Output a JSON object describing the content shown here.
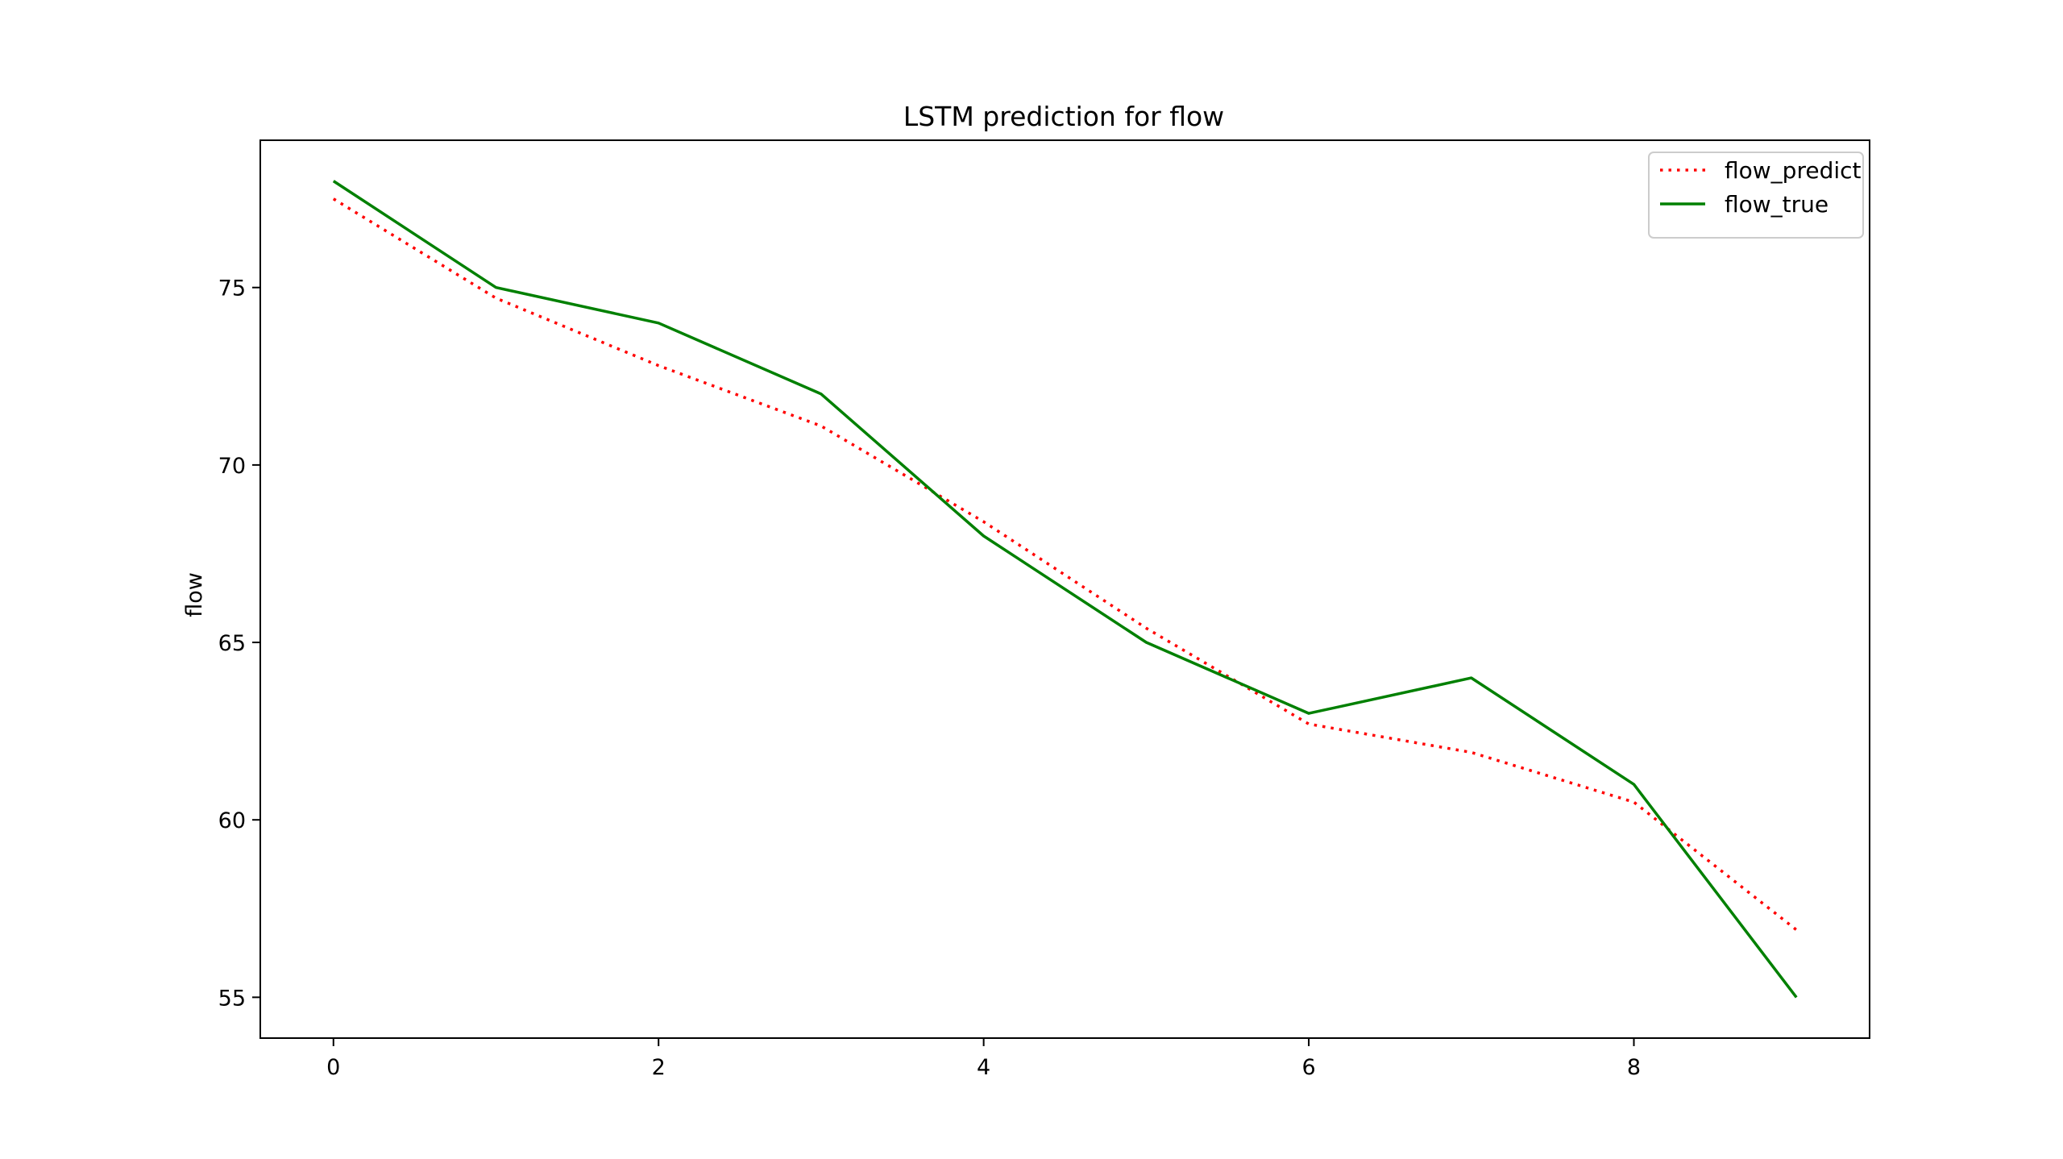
{
  "chart_data": {
    "type": "line",
    "title": "LSTM prediction for flow",
    "xlabel": "",
    "ylabel": "flow",
    "x": [
      0,
      1,
      2,
      3,
      4,
      5,
      6,
      7,
      8,
      9
    ],
    "xticks": [
      0,
      2,
      4,
      6,
      8
    ],
    "yticks": [
      55,
      60,
      65,
      70,
      75
    ],
    "xlim": [
      -0.45,
      9.45
    ],
    "ylim": [
      53.85,
      79.15
    ],
    "grid": false,
    "legend_position": "top-right",
    "series": [
      {
        "name": "flow_predict",
        "color": "#ff0000",
        "line_style": "dotted",
        "values": [
          77.5,
          74.7,
          72.8,
          71.1,
          68.4,
          65.4,
          62.7,
          61.9,
          60.5,
          56.9
        ]
      },
      {
        "name": "flow_true",
        "color": "#008000",
        "line_style": "solid",
        "values": [
          78,
          75,
          74,
          72,
          68,
          65,
          63,
          64,
          61,
          55
        ]
      }
    ]
  }
}
